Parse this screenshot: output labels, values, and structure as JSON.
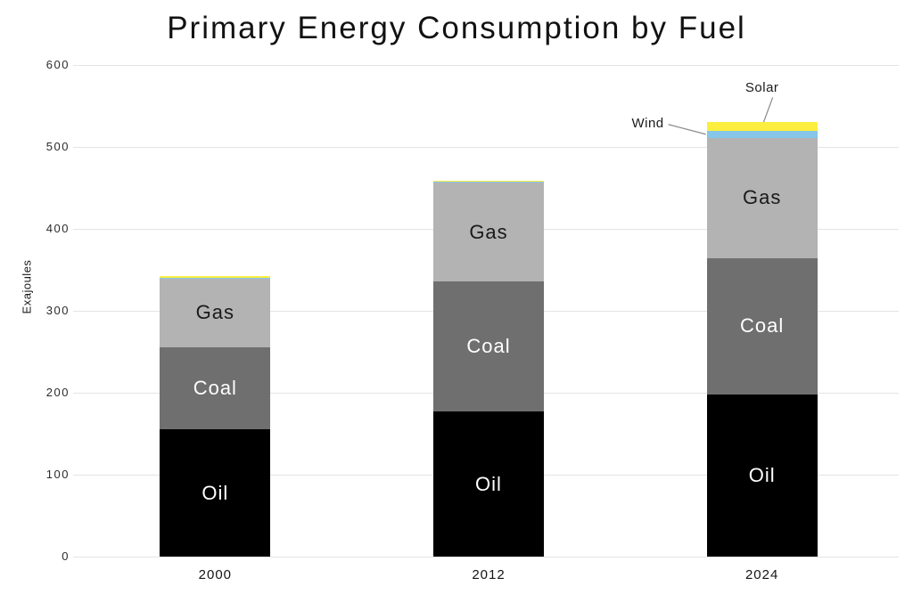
{
  "page": {
    "title": "Primary Energy Consumption by Fuel"
  },
  "chart_data": {
    "type": "bar",
    "stacked": true,
    "title": "Primary Energy Consumption by Fuel",
    "xlabel": "",
    "ylabel": "Exajoules",
    "categories": [
      "2000",
      "2012",
      "2024"
    ],
    "series": [
      {
        "name": "Oil",
        "color": "#000000",
        "label_color": "#ffffff",
        "values": [
          155,
          177,
          198
        ]
      },
      {
        "name": "Coal",
        "color": "#6f6f6f",
        "label_color": "#ffffff",
        "values": [
          100,
          159,
          166
        ]
      },
      {
        "name": "Gas",
        "color": "#b3b3b3",
        "label_color": "#1a1a1a",
        "values": [
          85,
          120,
          147
        ]
      },
      {
        "name": "Wind",
        "color": "#85c6e9",
        "label_color": "#1a1a1a",
        "values": [
          0.5,
          2,
          9
        ]
      },
      {
        "name": "Solar",
        "color": "#fcee3f",
        "label_color": "#1a1a1a",
        "values": [
          1.5,
          1,
          10
        ]
      }
    ],
    "totals": [
      342,
      459,
      530
    ],
    "ylim": [
      0,
      600
    ],
    "yticks": [
      0,
      100,
      200,
      300,
      400,
      500,
      600
    ],
    "grid": true,
    "legend": "none",
    "annotations": [
      {
        "text": "Wind",
        "series": "Wind",
        "category": "2024",
        "side": "left"
      },
      {
        "text": "Solar",
        "series": "Solar",
        "category": "2024",
        "side": "top"
      }
    ],
    "annotation_line_color": "#8a8a8a",
    "gridline_color": "#e4e4e4",
    "background_color": "#ffffff"
  }
}
